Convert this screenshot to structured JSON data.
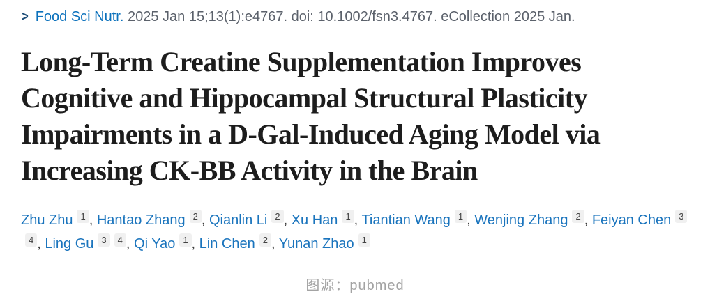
{
  "citation": {
    "chevron": ">",
    "journal_link": "Food Sci Nutr.",
    "details": "2025 Jan 15;13(1):e4767. doi: 10.1002/fsn3.4767. eCollection 2025 Jan."
  },
  "title": {
    "full": "Long-Term Creatine Supplementation Improves Cognitive and Hippocampal Structural Plasticity Impairments in a D-Gal-Induced Aging Model via Increasing CK-BB Activity in the Brain",
    "lines": [
      "Long-Term Creatine Supplementation Improves",
      "Cognitive and Hippocampal Structural Plasticity",
      "Impairments in a D-Gal-Induced Aging Model via",
      "Increasing CK-BB Activity in the Brain"
    ]
  },
  "authors": {
    "separator": ", ",
    "list": [
      {
        "name": "Zhu Zhu",
        "affiliations": [
          "1"
        ]
      },
      {
        "name": "Hantao Zhang",
        "affiliations": [
          "2"
        ]
      },
      {
        "name": "Qianlin Li",
        "affiliations": [
          "2"
        ]
      },
      {
        "name": "Xu Han",
        "affiliations": [
          "1"
        ]
      },
      {
        "name": "Tiantian Wang",
        "affiliations": [
          "1"
        ]
      },
      {
        "name": "Wenjing Zhang",
        "affiliations": [
          "2"
        ]
      },
      {
        "name": "Feiyan Chen",
        "affiliations": [
          "3",
          "4"
        ]
      },
      {
        "name": "Ling Gu",
        "affiliations": [
          "3",
          "4"
        ]
      },
      {
        "name": "Qi Yao",
        "affiliations": [
          "1"
        ]
      },
      {
        "name": "Lin Chen",
        "affiliations": [
          "2"
        ]
      },
      {
        "name": "Yunan Zhao",
        "affiliations": [
          "1"
        ]
      }
    ]
  },
  "caption": "图源：pubmed",
  "colors": {
    "link_blue": "#0b71bc",
    "author_link_blue": "#1a74bd",
    "chevron_navy": "#1e4e79",
    "citation_gray": "#5b616b",
    "title_dark": "#1d1d1d",
    "badge_bg": "#f0f0f0",
    "badge_text": "#424242",
    "caption_gray": "#a3a3a3",
    "background": "#ffffff"
  }
}
